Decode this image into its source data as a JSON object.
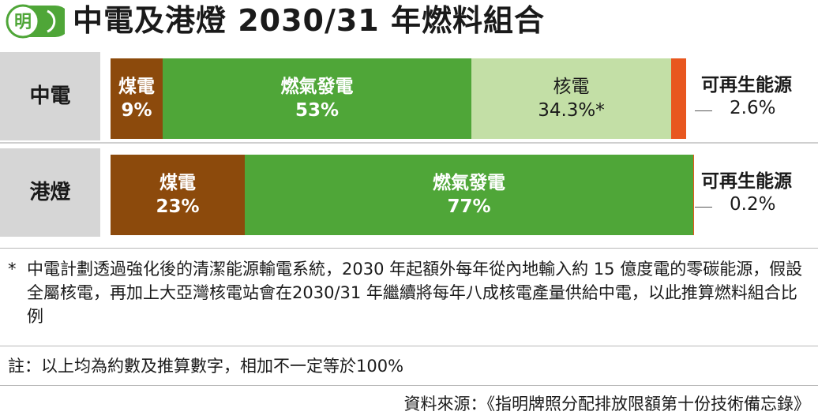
{
  "header": {
    "logo_char": "明",
    "title": "中電及港燈 2030/31 年燃料組合"
  },
  "colors": {
    "coal": "#8c4a0c",
    "gas": "#4fa638",
    "nuclear": "#c3dfa6",
    "renewable": "#e8571f",
    "logo_green": "#4fa638",
    "row_label_bg": "#d6d6d6"
  },
  "chart_data": {
    "type": "bar",
    "stacked": true,
    "orientation": "horizontal",
    "xlim": [
      0,
      100
    ],
    "categories": [
      "中電",
      "港燈"
    ],
    "rows": [
      {
        "label": "中電",
        "segments": [
          {
            "name": "煤電",
            "value": 9,
            "value_text": "9%",
            "color": "#8c4a0c",
            "text_style": "white"
          },
          {
            "name": "燃氣發電",
            "value": 53,
            "value_text": "53%",
            "color": "#4fa638",
            "text_style": "white"
          },
          {
            "name": "核電",
            "value": 34.3,
            "value_text": "34.3%*",
            "color": "#c3dfa6",
            "text_style": "dark"
          },
          {
            "name": "可再生能源",
            "value": 2.6,
            "value_text": "2.6%",
            "color": "#e8571f",
            "text_style": "callout"
          }
        ]
      },
      {
        "label": "港燈",
        "segments": [
          {
            "name": "煤電",
            "value": 23,
            "value_text": "23%",
            "color": "#8c4a0c",
            "text_style": "white"
          },
          {
            "name": "燃氣發電",
            "value": 77,
            "value_text": "77%",
            "color": "#4fa638",
            "text_style": "white"
          },
          {
            "name": "可再生能源",
            "value": 0.2,
            "value_text": "0.2%",
            "color": "#e8571f",
            "text_style": "callout"
          }
        ]
      }
    ]
  },
  "notes": {
    "footnote_star": "*",
    "footnote": "中電計劃透過強化後的清潔能源輸電系統，2030 年起額外每年從內地輸入約 15 億度電的零碳能源，假設全屬核電，再加上大亞灣核電站會在2030/31 年繼續將每年八成核電產量供給中電，以此推算燃料組合比例",
    "remark": "註：以上均為約數及推算數字，相加不一定等於100%",
    "source": "資料來源：《指明牌照分配排放限額第十份技術備忘錄》"
  }
}
